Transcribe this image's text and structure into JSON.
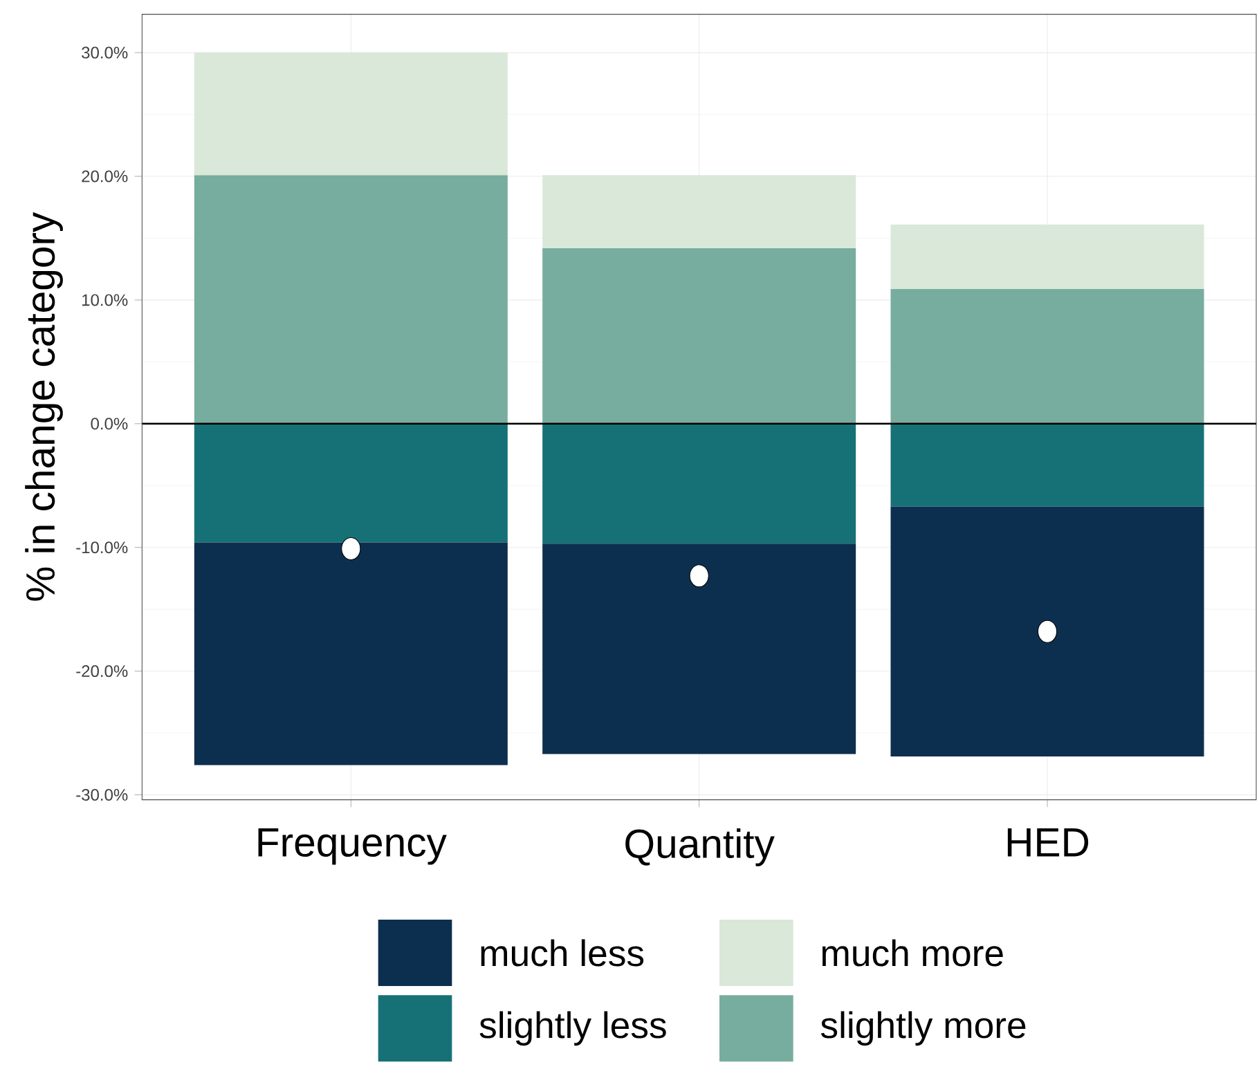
{
  "chart_data": {
    "type": "bar",
    "stacked": true,
    "ylabel": "% in change category",
    "categories": [
      "Frequency",
      "Quantity",
      "HED"
    ],
    "series": [
      {
        "name": "slightly less",
        "color": "#167177",
        "values": [
          -9.6,
          -9.7,
          -6.7
        ]
      },
      {
        "name": "much less",
        "color": "#0d2f4f",
        "values": [
          -18.0,
          -17.0,
          -20.2
        ]
      },
      {
        "name": "slightly more",
        "color": "#77ad9e",
        "values": [
          20.1,
          14.2,
          10.9
        ]
      },
      {
        "name": "much more",
        "color": "#d9e8d8",
        "values": [
          9.9,
          5.9,
          5.2
        ]
      },
      {
        "type": "scatter",
        "color": "#ffffff",
        "marker": "circle",
        "x": [
          "Frequency",
          "Quantity",
          "HED"
        ],
        "values": [
          -10.1,
          -12.3,
          -16.8
        ]
      }
    ],
    "ylim": [
      -30.4,
      33.1
    ],
    "yticks": [
      {
        "value": -30,
        "label": "-30.0%"
      },
      {
        "value": -20,
        "label": "-20.0%"
      },
      {
        "value": -10,
        "label": "-10.0%"
      },
      {
        "value": 0,
        "label": "0.0%"
      },
      {
        "value": 10,
        "label": "10.0%"
      },
      {
        "value": 20,
        "label": "20.0%"
      },
      {
        "value": 30,
        "label": "30.0%"
      }
    ],
    "ref_lines": [
      {
        "axis": "y",
        "value": 0,
        "color": "#000000"
      }
    ],
    "grid": true,
    "legend": "bottom"
  }
}
